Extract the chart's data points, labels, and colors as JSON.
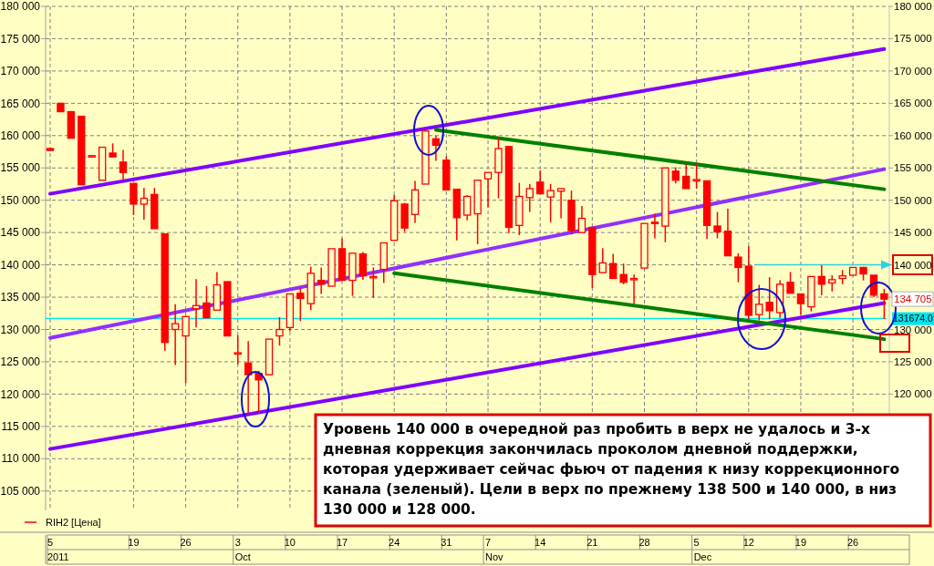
{
  "chart_data": {
    "type": "candlestick",
    "categories": [
      "5",
      null,
      null,
      null,
      null,
      null,
      null,
      null,
      "19",
      null,
      null,
      null,
      null,
      "26",
      null,
      null,
      null,
      null,
      "3",
      null,
      null,
      null,
      null,
      "10",
      null,
      null,
      null,
      null,
      "17",
      null,
      null,
      null,
      null,
      "24",
      null,
      null,
      null,
      null,
      "31",
      null,
      null,
      null,
      "7",
      null,
      null,
      null,
      null,
      "14",
      null,
      null,
      null,
      null,
      "21",
      null,
      null,
      null,
      null,
      "28",
      null,
      null,
      null,
      null,
      "5",
      null,
      null,
      null,
      null,
      "12",
      null,
      null,
      null,
      null,
      "19",
      null,
      null,
      null,
      null,
      "26",
      null,
      null,
      null
    ],
    "series": [
      {
        "name": "RIH2 [Цена]",
        "type": "candlestick",
        "color": "#ff0000",
        "ohlc": [
          [
            158000,
            158000,
            157700,
            157700
          ],
          [
            165000,
            165000,
            163700,
            163700
          ],
          [
            163700,
            163800,
            159600,
            159600
          ],
          [
            163000,
            163000,
            152400,
            152400
          ],
          [
            156900,
            157000,
            156800,
            156900
          ],
          [
            153100,
            158200,
            153100,
            158200
          ],
          [
            157300,
            158800,
            156700,
            156700
          ],
          [
            155900,
            157800,
            153100,
            154300
          ],
          [
            152600,
            152600,
            147700,
            149400
          ],
          [
            149400,
            151900,
            147000,
            150300
          ],
          [
            150900,
            151900,
            145600,
            145600
          ],
          [
            144800,
            144800,
            126700,
            128000
          ],
          [
            130000,
            133900,
            124500,
            130900
          ],
          [
            129000,
            132000,
            121700,
            132000
          ],
          [
            133200,
            137800,
            130300,
            133700
          ],
          [
            134100,
            136700,
            131800,
            131800
          ],
          [
            133000,
            138900,
            133000,
            136900
          ],
          [
            137400,
            137400,
            129000,
            129000
          ],
          [
            126400,
            129100,
            124600,
            126400
          ],
          [
            124800,
            128200,
            117000,
            123000
          ],
          [
            123200,
            123600,
            117300,
            122200
          ],
          [
            123000,
            128500,
            123000,
            128500
          ],
          [
            129000,
            131900,
            127500,
            130000
          ],
          [
            130300,
            135500,
            129700,
            135500
          ],
          [
            135600,
            136500,
            131300,
            134800
          ],
          [
            134000,
            139700,
            133000,
            138700
          ],
          [
            137600,
            139600,
            135500,
            137000
          ],
          [
            136700,
            142500,
            136700,
            142500
          ],
          [
            142500,
            144100,
            137600,
            137600
          ],
          [
            137600,
            141800,
            135200,
            141800
          ],
          [
            141700,
            142000,
            137700,
            138300
          ],
          [
            138200,
            139600,
            134900,
            138200
          ],
          [
            139300,
            143400,
            137200,
            143400
          ],
          [
            143800,
            150800,
            143800,
            149900
          ],
          [
            149400,
            149600,
            145100,
            145700
          ],
          [
            147800,
            153000,
            146500,
            151600
          ],
          [
            152500,
            161000,
            152500,
            160700
          ],
          [
            159500,
            160000,
            156100,
            158500
          ],
          [
            156200,
            156800,
            151600,
            151600
          ],
          [
            151700,
            151700,
            143800,
            147300
          ],
          [
            147700,
            150800,
            146900,
            150600
          ],
          [
            147900,
            153100,
            143200,
            153100
          ],
          [
            153300,
            154300,
            148900,
            154300
          ],
          [
            154300,
            159800,
            150300,
            158000
          ],
          [
            158300,
            158400,
            144900,
            145800
          ],
          [
            146100,
            152700,
            144600,
            150600
          ],
          [
            150400,
            152500,
            148200,
            151800
          ],
          [
            152800,
            154600,
            151000,
            151000
          ],
          [
            150500,
            152500,
            146600,
            151500
          ],
          [
            151400,
            151800,
            147200,
            151800
          ],
          [
            150000,
            151500,
            144700,
            145300
          ],
          [
            145000,
            149100,
            145000,
            147200
          ],
          [
            145800,
            145800,
            136400,
            138500
          ],
          [
            138800,
            142600,
            138700,
            140300
          ],
          [
            140200,
            141700,
            137900,
            137900
          ],
          [
            138500,
            140200,
            137000,
            137300
          ],
          [
            137900,
            138500,
            134000,
            137900
          ],
          [
            139500,
            146400,
            139500,
            146400
          ],
          [
            146600,
            147900,
            144100,
            146400
          ],
          [
            146000,
            155000,
            143500,
            155000
          ],
          [
            154500,
            155100,
            152600,
            153100
          ],
          [
            153700,
            155600,
            151800,
            151800
          ],
          [
            153200,
            155600,
            151800,
            153200
          ],
          [
            153000,
            153000,
            144000,
            146100
          ],
          [
            146000,
            148200,
            144100,
            145100
          ],
          [
            145200,
            148700,
            141400,
            141400
          ],
          [
            141200,
            141800,
            137300,
            139600
          ],
          [
            139800,
            142900,
            131500,
            132200
          ],
          [
            132300,
            136900,
            131400,
            133900
          ],
          [
            134200,
            138100,
            131600,
            132900
          ],
          [
            132600,
            137600,
            131800,
            137000
          ],
          [
            137300,
            138900,
            135600,
            135600
          ],
          [
            135500,
            135500,
            132300,
            134000
          ],
          [
            133500,
            138200,
            132800,
            138200
          ],
          [
            138200,
            140100,
            135300,
            137000
          ],
          [
            137200,
            138400,
            135900,
            137700
          ],
          [
            137900,
            139200,
            137000,
            138300
          ],
          [
            138400,
            139600,
            138400,
            139600
          ],
          [
            139600,
            139600,
            137600,
            138600
          ],
          [
            138400,
            138400,
            135000,
            135300
          ],
          [
            135500,
            136300,
            131600,
            134705
          ]
        ]
      },
      {
        "type": "line",
        "color": "#8000ff",
        "values": [
          151000,
          null,
          null,
          null,
          null,
          null,
          null,
          null,
          null,
          null,
          null,
          null,
          null,
          null,
          null,
          null,
          null,
          null,
          null,
          null,
          null,
          null,
          null,
          null,
          null,
          null,
          null,
          null,
          null,
          null,
          null,
          null,
          null,
          null,
          null,
          null,
          null,
          null,
          null,
          null,
          null,
          null,
          null,
          null,
          null,
          null,
          null,
          null,
          null,
          null,
          null,
          null,
          null,
          null,
          null,
          null,
          null,
          null,
          null,
          null,
          null,
          null,
          null,
          null,
          null,
          null,
          null,
          null,
          null,
          null,
          null,
          null,
          null,
          null,
          null,
          null,
          null,
          null,
          null,
          null,
          173400
        ]
      },
      {
        "type": "line",
        "color": "#8000ff",
        "values": [
          111500,
          null,
          null,
          null,
          null,
          null,
          null,
          null,
          null,
          null,
          null,
          null,
          null,
          null,
          null,
          null,
          null,
          null,
          null,
          null,
          null,
          null,
          null,
          null,
          null,
          null,
          null,
          null,
          null,
          null,
          null,
          null,
          null,
          null,
          null,
          null,
          null,
          null,
          null,
          null,
          null,
          null,
          null,
          null,
          null,
          null,
          null,
          null,
          null,
          null,
          null,
          null,
          null,
          null,
          null,
          null,
          null,
          null,
          null,
          null,
          null,
          null,
          null,
          null,
          null,
          null,
          null,
          null,
          null,
          null,
          null,
          null,
          null,
          null,
          null,
          null,
          null,
          null,
          null,
          null,
          134100
        ]
      },
      {
        "type": "line",
        "color": "#9030ff",
        "values": [
          128700,
          null,
          null,
          null,
          null,
          null,
          null,
          null,
          null,
          null,
          null,
          null,
          null,
          null,
          null,
          null,
          null,
          null,
          null,
          null,
          null,
          null,
          null,
          null,
          null,
          null,
          null,
          null,
          null,
          null,
          null,
          null,
          null,
          null,
          null,
          null,
          null,
          null,
          null,
          null,
          null,
          null,
          null,
          null,
          null,
          null,
          null,
          null,
          null,
          null,
          null,
          null,
          null,
          null,
          null,
          null,
          null,
          null,
          null,
          null,
          null,
          null,
          null,
          null,
          null,
          null,
          null,
          null,
          null,
          null,
          null,
          null,
          null,
          null,
          null,
          null,
          null,
          null,
          null,
          null,
          154800
        ]
      },
      {
        "type": "line",
        "color": "#008000",
        "values": [
          null,
          null,
          null,
          null,
          null,
          null,
          null,
          null,
          null,
          null,
          null,
          null,
          null,
          null,
          null,
          null,
          null,
          null,
          null,
          null,
          null,
          null,
          null,
          null,
          null,
          null,
          null,
          null,
          null,
          null,
          null,
          null,
          null,
          null,
          null,
          null,
          null,
          160900,
          null,
          null,
          null,
          null,
          null,
          null,
          null,
          null,
          null,
          null,
          null,
          null,
          null,
          null,
          null,
          null,
          null,
          null,
          null,
          null,
          null,
          null,
          null,
          null,
          null,
          null,
          null,
          null,
          null,
          null,
          null,
          null,
          null,
          null,
          null,
          null,
          null,
          null,
          null,
          null,
          null,
          null,
          151700
        ]
      },
      {
        "type": "line",
        "color": "#008000",
        "values": [
          null,
          null,
          null,
          null,
          null,
          null,
          null,
          null,
          null,
          null,
          null,
          null,
          null,
          null,
          null,
          null,
          null,
          null,
          null,
          null,
          null,
          null,
          null,
          null,
          null,
          null,
          null,
          null,
          null,
          null,
          null,
          null,
          null,
          138700,
          null,
          null,
          null,
          null,
          null,
          null,
          null,
          null,
          null,
          null,
          null,
          null,
          null,
          null,
          null,
          null,
          null,
          null,
          null,
          null,
          null,
          null,
          null,
          null,
          null,
          null,
          null,
          null,
          null,
          null,
          null,
          null,
          null,
          null,
          null,
          null,
          null,
          null,
          null,
          null,
          null,
          null,
          null,
          null,
          null,
          null,
          128500
        ]
      }
    ],
    "ylim": [
      102000,
      180000
    ],
    "yticks": [
      {
        "value": 105000,
        "label": "105 000"
      },
      {
        "value": 110000,
        "label": "110 000"
      },
      {
        "value": 115000,
        "label": "115 000"
      },
      {
        "value": 120000,
        "label": "120 000"
      },
      {
        "value": 125000,
        "label": "125 000"
      },
      {
        "value": 130000,
        "label": "130 000"
      },
      {
        "value": 135000,
        "label": "135 000"
      },
      {
        "value": 140000,
        "label": "140 000"
      },
      {
        "value": 145000,
        "label": "145 000"
      },
      {
        "value": 150000,
        "label": "150 000"
      },
      {
        "value": 155000,
        "label": "155 000"
      },
      {
        "value": 160000,
        "label": "160 000"
      },
      {
        "value": 165000,
        "label": "165 000"
      },
      {
        "value": 170000,
        "label": "170 000"
      },
      {
        "value": 175000,
        "label": "175 000"
      },
      {
        "value": 180000,
        "label": "180 000"
      }
    ],
    "y2lim": [
      102000,
      180000
    ],
    "y2ticks": [
      {
        "value": 105000,
        "label": null
      },
      {
        "value": 110000,
        "label": null
      },
      {
        "value": 115000,
        "label": null
      },
      {
        "value": 120000,
        "label": "120 000"
      },
      {
        "value": 125000,
        "label": "125 000"
      },
      {
        "value": 130000,
        "label": "130 000"
      },
      {
        "value": 135000,
        "label": null
      },
      {
        "value": 140000,
        "label": "140 000"
      },
      {
        "value": 145000,
        "label": "145 000"
      },
      {
        "value": 150000,
        "label": "150 000"
      },
      {
        "value": 155000,
        "label": "155 000"
      },
      {
        "value": 160000,
        "label": "160 000"
      },
      {
        "value": 165000,
        "label": "165 000"
      },
      {
        "value": 170000,
        "label": "170 000"
      },
      {
        "value": 175000,
        "label": "175 000"
      },
      {
        "value": 180000,
        "label": "180 000"
      }
    ],
    "ref_lines": [
      {
        "axis": "y",
        "value": 131674,
        "label": "131674.0",
        "color": "#00e5ee"
      }
    ],
    "grid": true,
    "legend": "bottom left",
    "annotations": [
      "Уровень 140 000 в очередной раз пробить в верх не удалось и 3-х дневная коррекция закончилась проколом дневной поддержки, которая удерживает сейчас фьюч от падения к низу коррекционного канала (зеленый). Цели в верх по прежнему 138 500 и 140 000, в низ 130 000 и 128 000.",
      "2011",
      "Oct",
      "Nov",
      "Dec",
      "134 705"
    ]
  }
}
